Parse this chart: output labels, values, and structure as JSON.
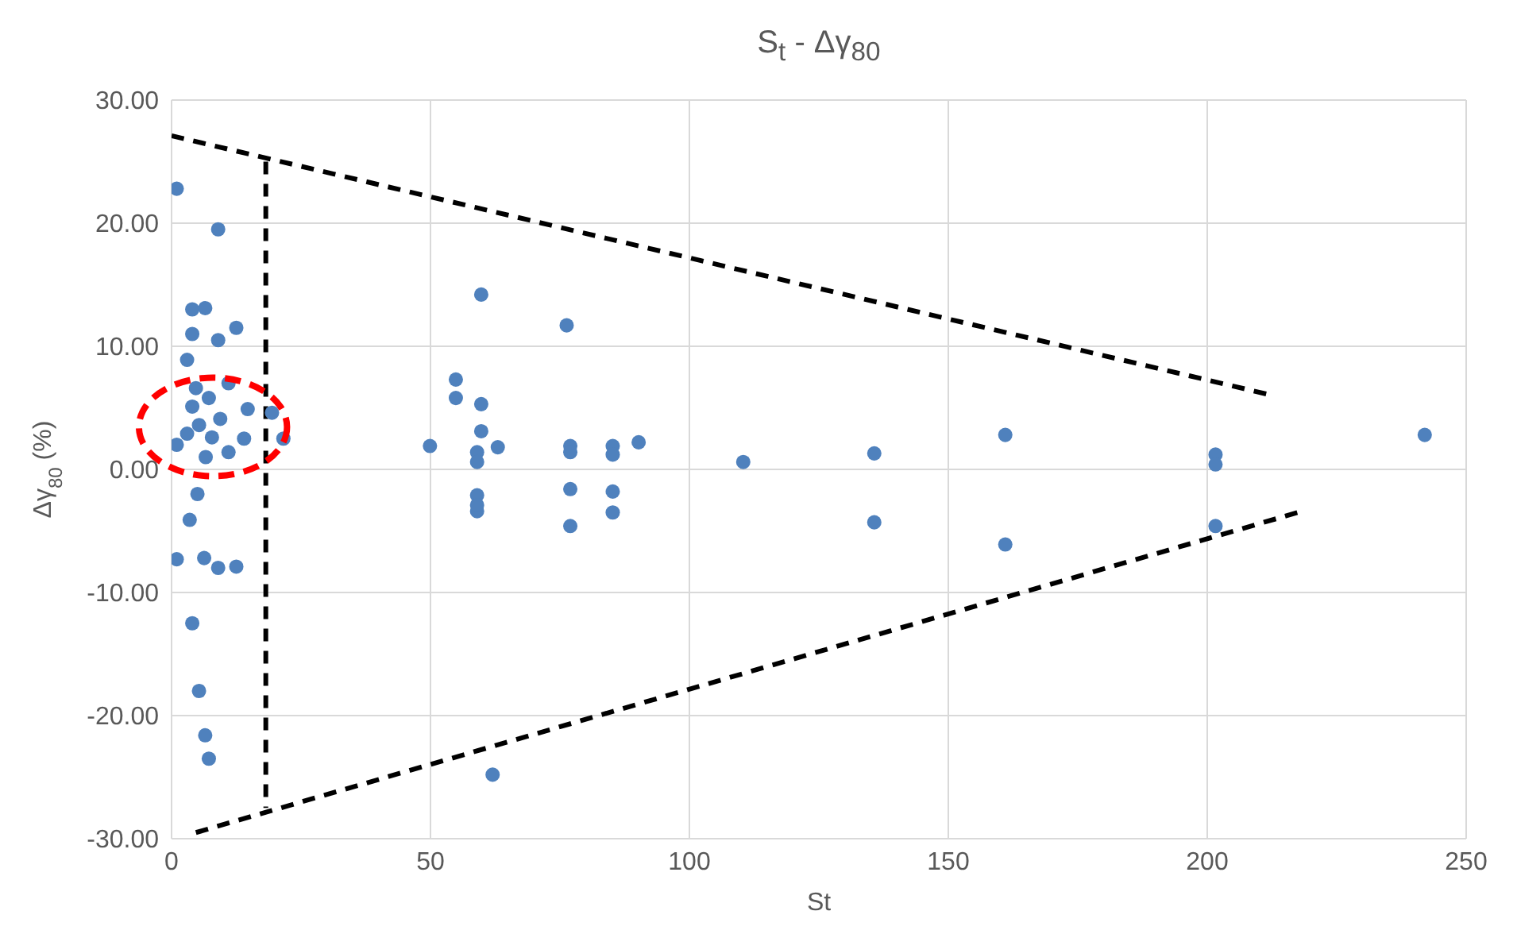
{
  "chart_data": {
    "type": "scatter",
    "title": "S$_{t}$ - Δγ$_{80}$",
    "xlabel": "St",
    "ylabel": "Δγ$_{80}$ (%)",
    "xlim": [
      0,
      250
    ],
    "xticks": [
      0,
      50,
      100,
      150,
      200,
      250
    ],
    "ylim": [
      -30,
      30
    ],
    "yticks": [
      {
        "value": -30,
        "label": "-30.00"
      },
      {
        "value": -20,
        "label": "-20.00"
      },
      {
        "value": -10,
        "label": "-10.00"
      },
      {
        "value": 0,
        "label": "0.00"
      },
      {
        "value": 10,
        "label": "10.00"
      },
      {
        "value": 20,
        "label": "20.00"
      },
      {
        "value": 30,
        "label": "30.00"
      }
    ],
    "grid": true,
    "legend": false,
    "series": [
      {
        "color": "#4f81bd",
        "marker": "circle",
        "x": [
          1,
          9,
          4,
          6.5,
          4,
          12.5,
          9,
          3,
          4.7,
          11,
          4,
          7.2,
          14.7,
          19.4,
          21.6,
          14,
          1,
          6.6,
          11,
          5.3,
          9.4,
          3,
          7.8,
          5,
          3.5,
          1,
          6.3,
          9,
          12.5,
          4,
          5.3,
          6.5,
          7.2,
          59.8,
          76.3,
          54.9,
          54.9,
          59.8,
          49.9,
          59.8,
          63,
          59,
          59,
          77,
          77,
          85.2,
          85.2,
          90.2,
          110.4,
          135.7,
          161,
          59,
          59,
          59,
          77,
          77,
          85.2,
          85.2,
          135.7,
          161,
          201.6,
          201.6,
          242,
          201.6,
          62
        ],
        "values": [
          22.8,
          19.5,
          13.0,
          13.1,
          11.0,
          11.5,
          10.5,
          8.9,
          6.6,
          7.0,
          5.1,
          5.8,
          4.9,
          4.6,
          2.5,
          2.5,
          2.0,
          1.0,
          1.4,
          3.6,
          4.1,
          2.9,
          2.6,
          -2.0,
          -4.1,
          -7.3,
          -7.2,
          -8.0,
          -7.9,
          -12.5,
          -18.0,
          -21.6,
          -23.5,
          14.2,
          11.7,
          7.3,
          5.8,
          5.3,
          1.9,
          3.1,
          1.8,
          1.4,
          0.6,
          1.9,
          1.4,
          1.9,
          1.2,
          2.2,
          0.6,
          1.3,
          2.8,
          -2.1,
          -3.4,
          -2.9,
          -1.6,
          -4.6,
          -1.8,
          -3.5,
          -4.3,
          -6.1,
          1.2,
          0.4,
          2.8,
          -4.6,
          -24.8
        ]
      },
      {
        "type": "line",
        "color": "#000000",
        "line_style": "dashed",
        "marker": "none",
        "x": [
          0,
          212.7
        ],
        "values": [
          27.1,
          6.0
        ]
      },
      {
        "type": "line",
        "color": "#000000",
        "line_style": "dashed",
        "marker": "none",
        "x": [
          4.7,
          218.3
        ],
        "values": [
          -29.5,
          -3.4
        ]
      },
      {
        "type": "line",
        "color": "#000000",
        "line_style": "dashed",
        "marker": "none",
        "x": [
          18.2,
          18.2
        ],
        "values": [
          25.0,
          -27.5
        ]
      }
    ]
  }
}
